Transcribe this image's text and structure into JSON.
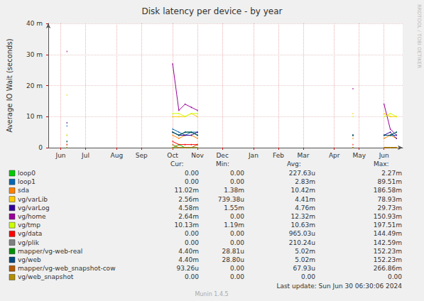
{
  "chart_data": {
    "type": "line",
    "title": "Disk latency per device - by year",
    "ylabel": "Average IO Wait (seconds)",
    "watermark": "RRDTOOL / TOBI OETIKER",
    "last_update": "Last update: Sun Jun 30 06:30:06 2024",
    "footer": "Munin 1.4.5",
    "grid": true,
    "categories": [
      null,
      null,
      "Jun",
      null,
      null,
      null,
      "Jul",
      null,
      null,
      null,
      null,
      "Aug",
      null,
      null,
      null,
      "Sep",
      null,
      null,
      null,
      null,
      "Oct",
      null,
      null,
      null,
      "Nov",
      null,
      null,
      null,
      "Dec",
      null,
      null,
      null,
      null,
      "Jan",
      null,
      null,
      null,
      "Feb",
      null,
      null,
      null,
      "Mar",
      null,
      null,
      null,
      null,
      "Apr",
      null,
      null,
      null,
      "May",
      null,
      null,
      null,
      "Jun",
      null,
      null,
      null
    ],
    "ylim": [
      0,
      0.04
    ],
    "yticks": [
      0,
      {
        "value": 0.01,
        "label": "10 m"
      },
      {
        "value": 0.02,
        "label": "20 m"
      },
      {
        "value": 0.03,
        "label": "30 m"
      },
      {
        "value": 0.04,
        "label": "40 m"
      }
    ],
    "stats_header": [
      "Cur:",
      "Min:",
      "Avg:",
      "Max:"
    ],
    "series": [
      {
        "name": "loop0",
        "color": "#00cc00",
        "stats": [
          "0.00",
          "0.00",
          "227.63u",
          "2.27m"
        ],
        "values": [
          null,
          null,
          null,
          0,
          null,
          null,
          null,
          null,
          null,
          null,
          null,
          null,
          null,
          null,
          null,
          null,
          null,
          null,
          null,
          null,
          0,
          0.001,
          0,
          0,
          0,
          null,
          null,
          null,
          null,
          null,
          null,
          null,
          null,
          null,
          null,
          null,
          null,
          null,
          null,
          null,
          null,
          null,
          null,
          null,
          null,
          null,
          null,
          null,
          null,
          0,
          null,
          null,
          null,
          null,
          0,
          0,
          0,
          null
        ]
      },
      {
        "name": "loop1",
        "color": "#0066b3",
        "stats": [
          "0.00",
          "0.00",
          "2.83m",
          "89.51m"
        ],
        "values": [
          null,
          null,
          null,
          0.007,
          null,
          null,
          null,
          null,
          null,
          null,
          null,
          null,
          null,
          null,
          null,
          null,
          null,
          null,
          null,
          null,
          0.006,
          0.005,
          0.004,
          0.005,
          0.005,
          null,
          null,
          null,
          null,
          null,
          null,
          null,
          null,
          null,
          null,
          null,
          null,
          null,
          null,
          null,
          null,
          null,
          null,
          null,
          null,
          null,
          null,
          null,
          null,
          0.004,
          null,
          null,
          null,
          null,
          0.004,
          0.004,
          0.004,
          null
        ]
      },
      {
        "name": "sda",
        "color": "#ff8000",
        "stats": [
          "11.02m",
          "1.38m",
          "10.42m",
          "186.58m"
        ],
        "values": [
          null,
          null,
          null,
          0.004,
          null,
          null,
          null,
          null,
          null,
          null,
          null,
          null,
          null,
          null,
          null,
          null,
          null,
          null,
          null,
          null,
          0.004,
          0.003,
          0.004,
          0.004,
          0.003,
          null,
          null,
          null,
          null,
          null,
          null,
          null,
          null,
          null,
          null,
          null,
          null,
          null,
          null,
          null,
          null,
          null,
          null,
          null,
          null,
          null,
          null,
          null,
          null,
          0.003,
          null,
          null,
          null,
          null,
          0.003,
          0.004,
          0.003,
          null
        ]
      },
      {
        "name": "vg/varLib",
        "color": "#ffcc00",
        "stats": [
          "2.56m",
          "739.38u",
          "4.41m",
          "78.93m"
        ],
        "values": [
          null,
          null,
          null,
          0.017,
          null,
          null,
          null,
          null,
          null,
          null,
          null,
          null,
          null,
          null,
          null,
          null,
          null,
          null,
          null,
          null,
          0.01,
          0.01,
          0.01,
          0.011,
          0.01,
          null,
          null,
          null,
          null,
          null,
          null,
          null,
          null,
          null,
          null,
          null,
          null,
          null,
          null,
          null,
          null,
          null,
          null,
          null,
          null,
          null,
          null,
          null,
          null,
          0.011,
          null,
          null,
          null,
          null,
          0.011,
          0.01,
          0.01,
          null
        ]
      },
      {
        "name": "vg/varLog",
        "color": "#330099",
        "stats": [
          "4.58m",
          "1.55m",
          "4.76m",
          "29.73m"
        ],
        "values": [
          null,
          null,
          null,
          0.008,
          null,
          null,
          null,
          null,
          null,
          null,
          null,
          null,
          null,
          null,
          null,
          null,
          null,
          null,
          null,
          null,
          0.005,
          0.004,
          0.004,
          0.004,
          0.005,
          null,
          null,
          null,
          null,
          null,
          null,
          null,
          null,
          null,
          null,
          null,
          null,
          null,
          null,
          null,
          null,
          null,
          null,
          null,
          null,
          null,
          null,
          null,
          null,
          0.004,
          null,
          null,
          null,
          null,
          0.004,
          0.005,
          0.003,
          null
        ]
      },
      {
        "name": "vg/home",
        "color": "#990099",
        "stats": [
          "2.64m",
          "0.00",
          "12.32m",
          "150.93m"
        ],
        "values": [
          null,
          null,
          null,
          0.031,
          null,
          null,
          null,
          null,
          null,
          null,
          null,
          null,
          null,
          null,
          null,
          null,
          null,
          null,
          null,
          null,
          0.027,
          0.012,
          0.014,
          0.013,
          0.012,
          null,
          null,
          null,
          null,
          null,
          null,
          null,
          null,
          null,
          null,
          null,
          null,
          null,
          null,
          null,
          null,
          null,
          null,
          null,
          null,
          null,
          null,
          null,
          null,
          0.019,
          null,
          null,
          null,
          null,
          0.014,
          0.006,
          0.004,
          null
        ]
      },
      {
        "name": "vg/tmp",
        "color": "#ccff00",
        "stats": [
          "10.13m",
          "1.19m",
          "10.63m",
          "197.51m"
        ],
        "values": [
          null,
          null,
          null,
          0.004,
          null,
          null,
          null,
          null,
          null,
          null,
          null,
          null,
          null,
          null,
          null,
          null,
          null,
          null,
          null,
          null,
          0.011,
          0.011,
          0.01,
          0.011,
          0.011,
          null,
          null,
          null,
          null,
          null,
          null,
          null,
          null,
          null,
          null,
          null,
          null,
          null,
          null,
          null,
          null,
          null,
          null,
          null,
          null,
          null,
          null,
          null,
          null,
          0.01,
          null,
          null,
          null,
          null,
          0.01,
          0.011,
          0.01,
          null
        ]
      },
      {
        "name": "vg/data",
        "color": "#ff0000",
        "stats": [
          "0.00",
          "0.00",
          "965.03u",
          "144.49m"
        ],
        "values": [
          null,
          null,
          null,
          0.001,
          null,
          null,
          null,
          null,
          null,
          null,
          null,
          null,
          null,
          null,
          null,
          null,
          null,
          null,
          null,
          null,
          0.002,
          0.001,
          0.001,
          0.001,
          0.001,
          null,
          null,
          null,
          null,
          null,
          null,
          null,
          null,
          null,
          null,
          null,
          null,
          null,
          null,
          null,
          null,
          null,
          null,
          null,
          null,
          null,
          null,
          null,
          null,
          0.001,
          null,
          null,
          null,
          null,
          0,
          0,
          0,
          null
        ]
      },
      {
        "name": "vg/plik",
        "color": "#808080",
        "stats": [
          "0.00",
          "0.00",
          "210.24u",
          "142.59m"
        ],
        "values": [
          null,
          null,
          null,
          0,
          null,
          null,
          null,
          null,
          null,
          null,
          null,
          null,
          null,
          null,
          null,
          null,
          null,
          null,
          null,
          null,
          0,
          0,
          0,
          0,
          0,
          null,
          null,
          null,
          null,
          null,
          null,
          null,
          null,
          null,
          null,
          null,
          null,
          null,
          null,
          null,
          null,
          null,
          null,
          null,
          null,
          null,
          null,
          null,
          null,
          0,
          null,
          null,
          null,
          null,
          0,
          0,
          0,
          null
        ]
      },
      {
        "name": "mapper/vg-web-real",
        "color": "#008f00",
        "stats": [
          "4.40m",
          "28.81u",
          "5.02m",
          "152.23m"
        ],
        "values": [
          null,
          null,
          null,
          0.002,
          null,
          null,
          null,
          null,
          null,
          null,
          null,
          null,
          null,
          null,
          null,
          null,
          null,
          null,
          null,
          null,
          0.005,
          0.004,
          0.005,
          0.005,
          0.004,
          null,
          null,
          null,
          null,
          null,
          null,
          null,
          null,
          null,
          null,
          null,
          null,
          null,
          null,
          null,
          null,
          null,
          null,
          null,
          null,
          null,
          null,
          null,
          null,
          0.004,
          null,
          null,
          null,
          null,
          0.004,
          0.004,
          0.005,
          null
        ]
      },
      {
        "name": "vg/web",
        "color": "#00487d",
        "stats": [
          "4.40m",
          "28.80u",
          "5.02m",
          "152.23m"
        ],
        "values": [
          null,
          null,
          null,
          0.002,
          null,
          null,
          null,
          null,
          null,
          null,
          null,
          null,
          null,
          null,
          null,
          null,
          null,
          null,
          null,
          null,
          0.005,
          0.004,
          0.005,
          0.005,
          0.004,
          null,
          null,
          null,
          null,
          null,
          null,
          null,
          null,
          null,
          null,
          null,
          null,
          null,
          null,
          null,
          null,
          null,
          null,
          null,
          null,
          null,
          null,
          null,
          null,
          0.004,
          null,
          null,
          null,
          null,
          0.004,
          0.004,
          0.005,
          null
        ]
      },
      {
        "name": "mapper/vg-web_snapshot-cow",
        "color": "#b35a00",
        "stats": [
          "93.26u",
          "0.00",
          "67.93u",
          "266.86m"
        ],
        "values": [
          null,
          null,
          null,
          0.001,
          null,
          null,
          null,
          null,
          null,
          null,
          null,
          null,
          null,
          null,
          null,
          null,
          null,
          null,
          null,
          null,
          0.001,
          0,
          0,
          0,
          0.001,
          null,
          null,
          null,
          null,
          null,
          null,
          null,
          null,
          null,
          null,
          null,
          null,
          null,
          null,
          null,
          null,
          null,
          null,
          null,
          null,
          null,
          null,
          null,
          null,
          0,
          null,
          null,
          null,
          null,
          0,
          0,
          0,
          null
        ]
      },
      {
        "name": "vg/web_snapshot",
        "color": "#b38f00",
        "stats": [
          "0.00",
          "0.00",
          "0.00",
          "0.00"
        ],
        "values": [
          null,
          null,
          null,
          0,
          null,
          null,
          null,
          null,
          null,
          null,
          null,
          null,
          null,
          null,
          null,
          null,
          null,
          null,
          null,
          null,
          0,
          0,
          0,
          0,
          0,
          null,
          null,
          null,
          null,
          null,
          null,
          null,
          null,
          null,
          null,
          null,
          null,
          null,
          null,
          null,
          null,
          null,
          null,
          null,
          null,
          null,
          null,
          null,
          null,
          0,
          null,
          null,
          null,
          null,
          0,
          0,
          0,
          null
        ]
      }
    ]
  }
}
